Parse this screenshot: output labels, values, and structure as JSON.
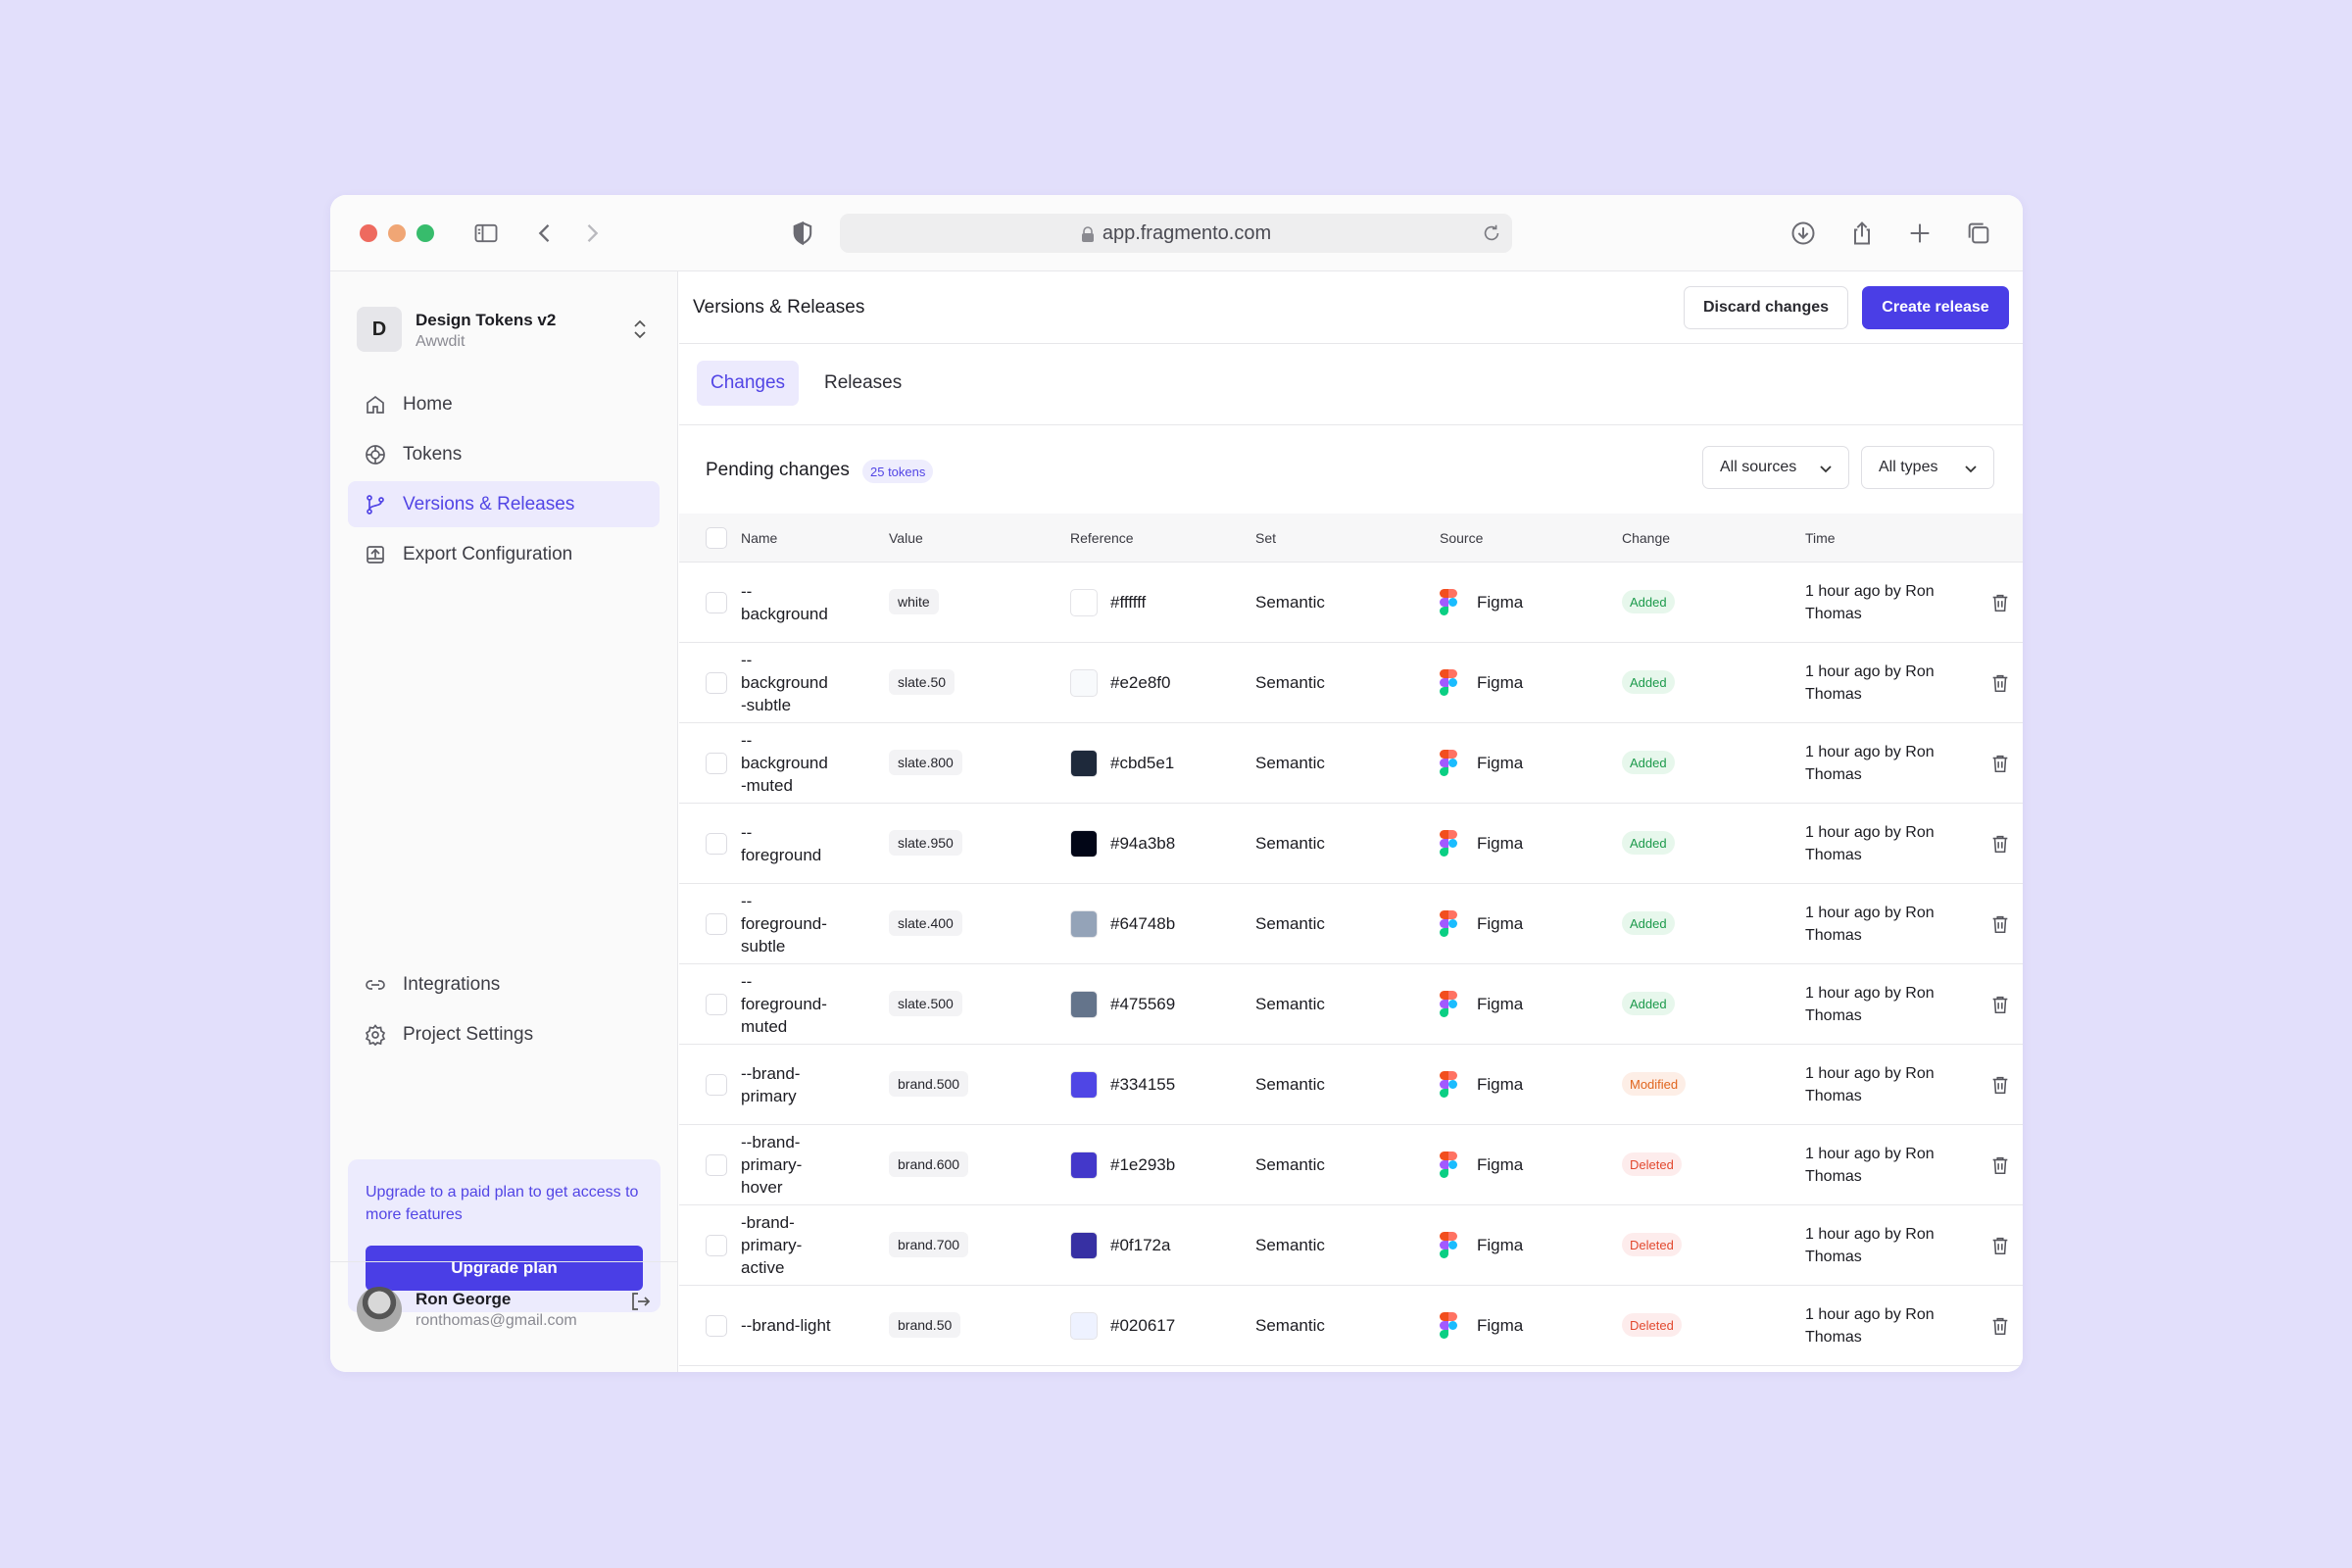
{
  "browser": {
    "url": "app.fragmento.com"
  },
  "sidebar": {
    "project": {
      "initial": "D",
      "name": "Design Tokens v2",
      "org": "Awwdit"
    },
    "nav": [
      {
        "label": "Home",
        "icon": "home-icon"
      },
      {
        "label": "Tokens",
        "icon": "tokens-icon"
      },
      {
        "label": "Versions & Releases",
        "icon": "git-branch-icon",
        "active": true
      },
      {
        "label": "Export Configuration",
        "icon": "export-icon"
      }
    ],
    "bottom_nav": [
      {
        "label": "Integrations",
        "icon": "link-icon"
      },
      {
        "label": "Project Settings",
        "icon": "gear-icon"
      }
    ],
    "upgrade": {
      "text": "Upgrade to a paid plan to get access to more features",
      "button": "Upgrade plan"
    },
    "user": {
      "name": "Ron George",
      "email": "ronthomas@gmail.com"
    }
  },
  "header": {
    "title": "Versions & Releases",
    "discard_label": "Discard changes",
    "create_label": "Create release"
  },
  "tabs": [
    {
      "label": "Changes",
      "active": true
    },
    {
      "label": "Releases",
      "active": false
    }
  ],
  "pending": {
    "title": "Pending changes",
    "count": "25 tokens",
    "filter_sources": "All sources",
    "filter_types": "All types"
  },
  "table": {
    "columns": [
      "Name",
      "Value",
      "Reference",
      "Set",
      "Source",
      "Change",
      "Time"
    ],
    "rows": [
      {
        "name": "--\nbackground",
        "value": "white",
        "swatch": "#ffffff",
        "ref": "#ffffff",
        "set": "Semantic",
        "source": "Figma",
        "change": "Added",
        "time": "1 hour ago by Ron Thomas"
      },
      {
        "name": "--\nbackground\n-subtle",
        "value": "slate.50",
        "swatch": "#f8fafc",
        "ref": "#e2e8f0",
        "set": "Semantic",
        "source": "Figma",
        "change": "Added",
        "time": "1 hour ago by Ron Thomas"
      },
      {
        "name": "--\nbackground\n-muted",
        "value": "slate.800",
        "swatch": "#1e293b",
        "ref": "#cbd5e1",
        "set": "Semantic",
        "source": "Figma",
        "change": "Added",
        "time": "1 hour ago by Ron Thomas"
      },
      {
        "name": "--\nforeground",
        "value": "slate.950",
        "swatch": "#020617",
        "ref": "#94a3b8",
        "set": "Semantic",
        "source": "Figma",
        "change": "Added",
        "time": "1 hour ago by Ron Thomas"
      },
      {
        "name": "--\nforeground-\nsubtle",
        "value": "slate.400",
        "swatch": "#94a3b8",
        "ref": "#64748b",
        "set": "Semantic",
        "source": "Figma",
        "change": "Added",
        "time": "1 hour ago by Ron Thomas"
      },
      {
        "name": "--\nforeground-\nmuted",
        "value": "slate.500",
        "swatch": "#64748b",
        "ref": "#475569",
        "set": "Semantic",
        "source": "Figma",
        "change": "Added",
        "time": "1 hour ago by Ron Thomas"
      },
      {
        "name": "--brand-\nprimary",
        "value": "brand.500",
        "swatch": "#4f46e5",
        "ref": "#334155",
        "set": "Semantic",
        "source": "Figma",
        "change": "Modified",
        "time": "1 hour ago by Ron Thomas"
      },
      {
        "name": "--brand-\nprimary-\nhover",
        "value": "brand.600",
        "swatch": "#4338ca",
        "ref": "#1e293b",
        "set": "Semantic",
        "source": "Figma",
        "change": "Deleted",
        "time": "1 hour ago by Ron Thomas"
      },
      {
        "name": "-brand-\nprimary-\nactive",
        "value": "brand.700",
        "swatch": "#3730a3",
        "ref": "#0f172a",
        "set": "Semantic",
        "source": "Figma",
        "change": "Deleted",
        "time": "1 hour ago by Ron Thomas"
      },
      {
        "name": "--brand-light",
        "value": "brand.50",
        "swatch": "#eef2ff",
        "ref": "#020617",
        "set": "Semantic",
        "source": "Figma",
        "change": "Deleted",
        "time": "1 hour ago by Ron Thomas"
      }
    ]
  },
  "colors": {
    "accent": "#4a3ee6",
    "page_background": "#e2dffb",
    "added": "#1c9a4b",
    "modified": "#e0651e",
    "deleted": "#e2492f"
  }
}
